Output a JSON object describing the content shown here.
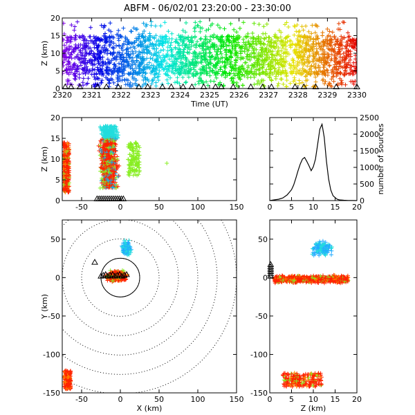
{
  "title": "ABFM - 06/02/01 23:20:00 - 23:30:00",
  "chart_data": [
    {
      "panel": "time-height",
      "type": "scatter",
      "xlabel": "Time (UT)",
      "ylabel": "Z (km)",
      "xlim": [
        2320,
        2330
      ],
      "ylim": [
        0,
        20
      ],
      "xticks": [
        "2320",
        "2321",
        "2322",
        "2323",
        "2324",
        "2325",
        "2326",
        "2327",
        "2328",
        "2329",
        "2330"
      ],
      "yticks": [
        "0",
        "5",
        "10",
        "15",
        "20"
      ],
      "color_scale": "time-rainbow (purple early → red late)",
      "band_z": [
        3,
        16
      ],
      "station_triangle_times": [
        2320.1,
        2320.3,
        2320.6,
        2321.2,
        2321.5,
        2321.9,
        2322.6,
        2322.9,
        2323.4,
        2323.7,
        2324.1,
        2324.4,
        2324.8,
        2325.2,
        2325.4,
        2325.8,
        2326.4,
        2326.8,
        2327.1,
        2327.9,
        2328.2,
        2328.6,
        2329.3,
        2330.0
      ]
    },
    {
      "panel": "x-height",
      "type": "scatter",
      "xlabel": "",
      "ylabel": "Z (km)",
      "xlim": [
        -75,
        150
      ],
      "ylim": [
        0,
        20
      ],
      "xticks": [
        "-50",
        "0",
        "50",
        "100",
        "150"
      ],
      "yticks": [
        "0",
        "5",
        "10",
        "15",
        "20"
      ],
      "clusters": [
        {
          "x": [
            -75,
            -65
          ],
          "z": [
            3,
            14
          ]
        },
        {
          "x": [
            -30,
            30
          ],
          "z": [
            1,
            20
          ]
        }
      ]
    },
    {
      "panel": "altitude-histogram",
      "type": "line",
      "xlabel": "",
      "ylabel": "number of sources",
      "xlim": [
        0,
        20
      ],
      "ylim": [
        0,
        2500
      ],
      "xticks": [
        "0",
        "5",
        "10",
        "15",
        "20"
      ],
      "yticks": [
        "0",
        "500",
        "1000",
        "1500",
        "2000",
        "2500"
      ],
      "x": [
        0,
        1,
        2,
        3,
        4,
        5,
        5.5,
        6,
        6.5,
        7,
        7.5,
        8,
        8.5,
        9,
        9.5,
        10,
        10.5,
        11,
        11.5,
        12,
        12.5,
        13,
        13.5,
        14,
        14.5,
        15,
        15.5,
        16,
        17,
        18,
        19,
        20
      ],
      "y": [
        0,
        20,
        40,
        80,
        170,
        330,
        470,
        680,
        900,
        1100,
        1250,
        1300,
        1180,
        1050,
        900,
        1020,
        1250,
        1700,
        2150,
        2300,
        1900,
        1200,
        650,
        320,
        150,
        90,
        40,
        20,
        10,
        5,
        2,
        0
      ]
    },
    {
      "panel": "plan-view",
      "type": "scatter",
      "xlabel": "X (km)",
      "ylabel": "Y (km)",
      "xlim": [
        -75,
        150
      ],
      "ylim": [
        -150,
        75
      ],
      "xticks": [
        "-50",
        "0",
        "50",
        "100",
        "150"
      ],
      "yticks": [
        "-150",
        "-100",
        "-50",
        "0",
        "50"
      ],
      "range_rings_km": [
        25,
        50,
        75,
        100,
        125,
        150
      ],
      "clusters": [
        {
          "x": [
            -20,
            20
          ],
          "y": [
            -10,
            50
          ]
        },
        {
          "x": [
            -75,
            -65
          ],
          "y": [
            -150,
            -120
          ]
        }
      ]
    },
    {
      "panel": "z-y",
      "type": "scatter",
      "xlabel": "Z (km)",
      "ylabel": "",
      "xlim": [
        0,
        20
      ],
      "ylim": [
        -150,
        75
      ],
      "xticks": [
        "0",
        "5",
        "10",
        "15",
        "20"
      ],
      "yticks": [
        "-150",
        "-100",
        "-50",
        "0",
        "50"
      ]
    }
  ]
}
